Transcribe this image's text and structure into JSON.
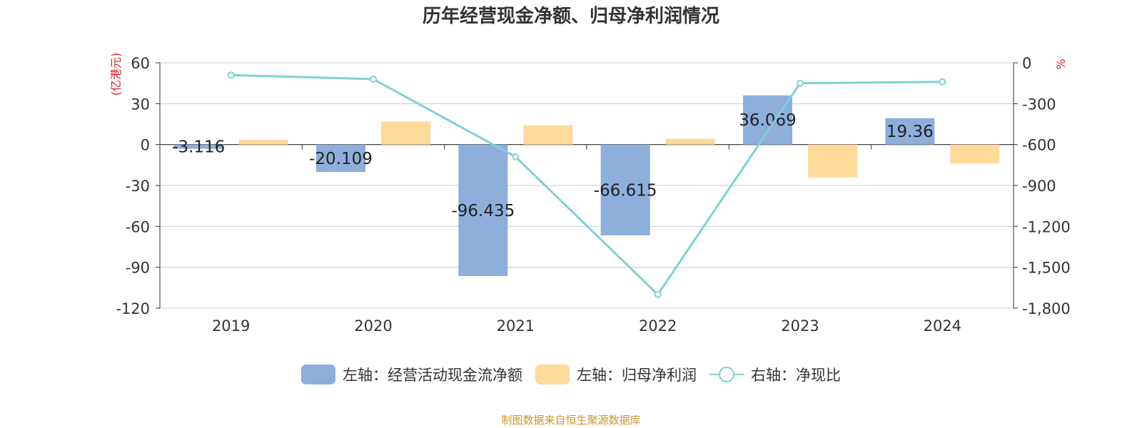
{
  "title": "历年经营现金净额、归母净利润情况",
  "source": "制图数据来自恒生聚源数据库",
  "chart_data": {
    "type": "bar",
    "categories": [
      "2019",
      "2020",
      "2021",
      "2022",
      "2023",
      "2024"
    ],
    "left_axis": {
      "label": "(亿港元)",
      "ylim": [
        -120,
        60
      ],
      "ticks": [
        "60",
        "30",
        "0",
        "-30",
        "-60",
        "-90",
        "-120"
      ]
    },
    "right_axis": {
      "label": "%",
      "ylim": [
        -1800,
        0
      ],
      "ticks": [
        "0",
        "-300",
        "-600",
        "-900",
        "-1,200",
        "-1,500",
        "-1,800"
      ]
    },
    "series": [
      {
        "name": "左轴：经营活动现金流净额",
        "type": "bar",
        "axis": "left",
        "color": "#8eaedb",
        "values": [
          -3.116,
          -20.109,
          -96.435,
          -66.615,
          36.069,
          19.36
        ],
        "labels": [
          "-3.116",
          "-20.109",
          "-96.435",
          "-66.615",
          "36.069",
          "19.36"
        ]
      },
      {
        "name": "左轴：归母净利润",
        "type": "bar",
        "axis": "left",
        "color": "#fdd99a",
        "values": [
          3.5,
          16.8,
          14.2,
          4.2,
          -24.0,
          -13.8
        ]
      },
      {
        "name": "右轴：净现比",
        "type": "line",
        "axis": "right",
        "color": "#7fd1d3",
        "values": [
          -90,
          -120,
          -690,
          -1700,
          -150,
          -140
        ]
      }
    ],
    "legend": "bottom",
    "grid": true
  }
}
